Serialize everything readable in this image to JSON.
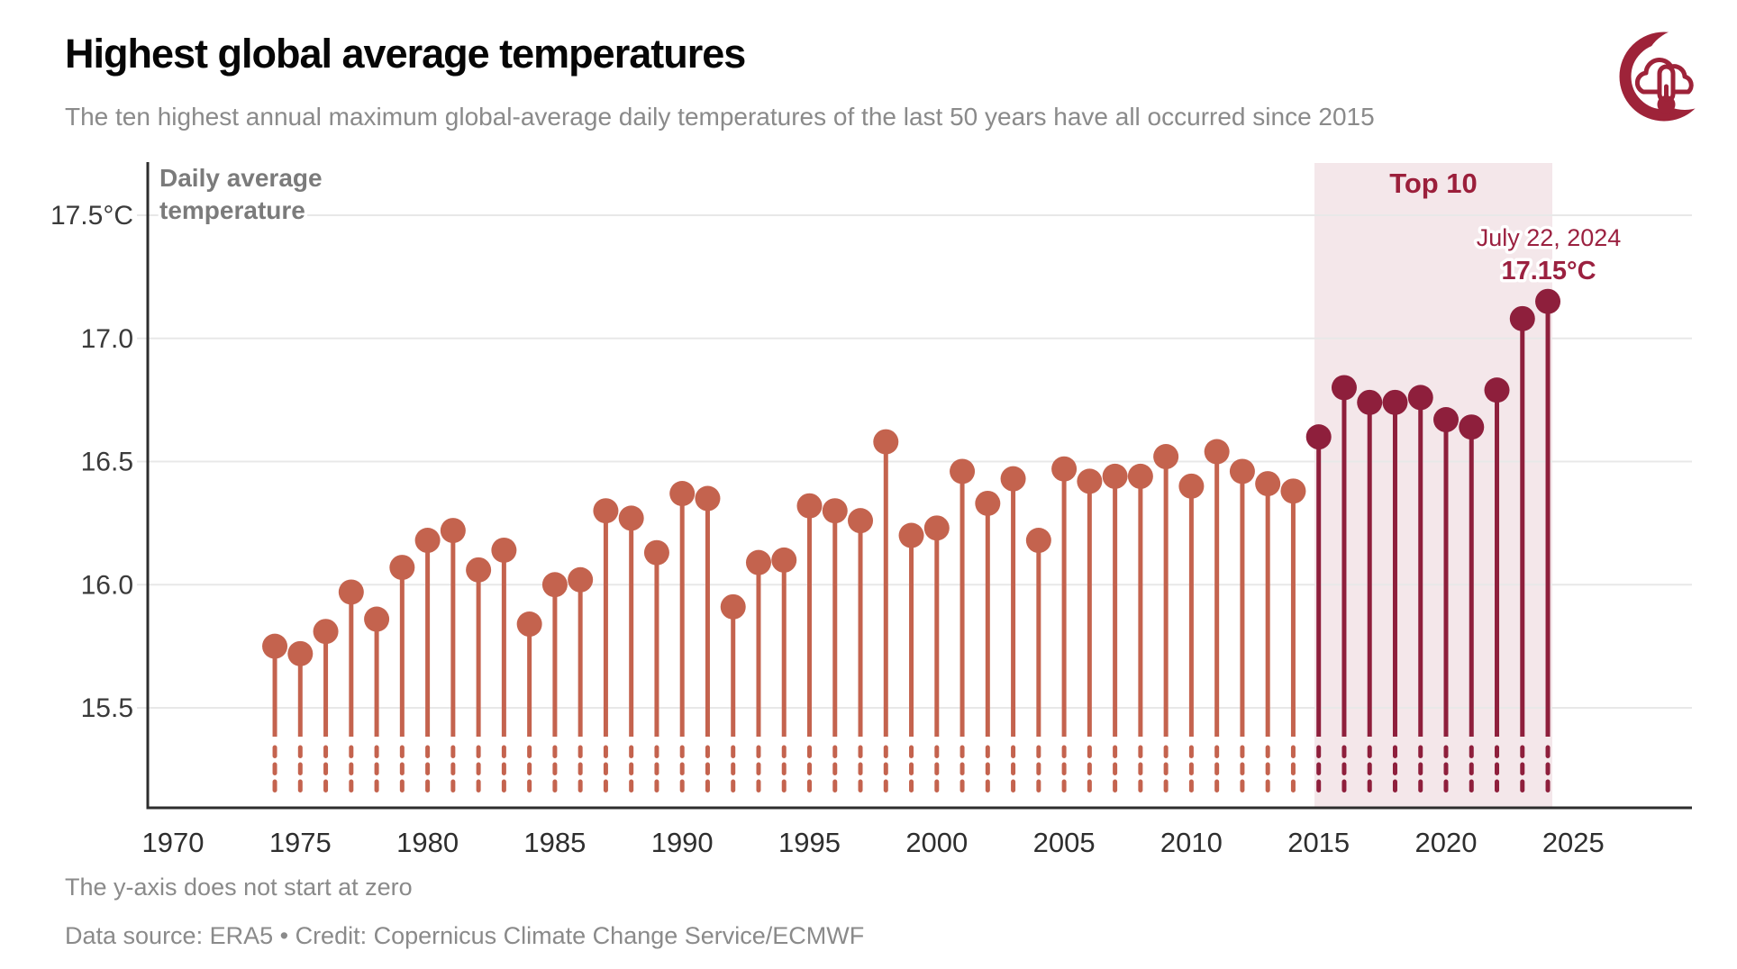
{
  "page": {
    "title": "Highest global average temperatures",
    "subtitle": "The ten highest annual maximum global-average daily temperatures of the last 50 years have all occurred since 2015",
    "footnote": "The y-axis does not start at zero",
    "credit": "Data source: ERA5 • Credit: Copernicus Climate Change Service/ECMWF",
    "logo": "cloud-thermometer-crescent-logo"
  },
  "chart_data": {
    "type": "lollipop",
    "title": "Highest global average temperatures",
    "subtitle": "The ten highest annual maximum global-average daily temperatures of the last 50 years have all occurred since 2015",
    "ylabel": "Daily average temperature",
    "ylabel_lines": [
      "Daily average",
      "temperature"
    ],
    "unit": "°C",
    "grid": "horizontal-only",
    "ylim": [
      15.25,
      17.65
    ],
    "xlim": [
      1969,
      2027
    ],
    "y_ticks": [
      {
        "label": "17.5°C",
        "value": 17.5
      },
      {
        "label": "17.0",
        "value": 17.0
      },
      {
        "label": "16.5",
        "value": 16.5
      },
      {
        "label": "16.0",
        "value": 16.0
      },
      {
        "label": "15.5",
        "value": 15.5
      }
    ],
    "x_ticks": [
      1970,
      1975,
      1980,
      1985,
      1990,
      1995,
      2000,
      2005,
      2010,
      2015,
      2020,
      2025
    ],
    "x": [
      1974,
      1975,
      1976,
      1977,
      1978,
      1979,
      1980,
      1981,
      1982,
      1983,
      1984,
      1985,
      1986,
      1987,
      1988,
      1989,
      1990,
      1991,
      1992,
      1993,
      1994,
      1995,
      1996,
      1997,
      1998,
      1999,
      2000,
      2001,
      2002,
      2003,
      2004,
      2005,
      2006,
      2007,
      2008,
      2009,
      2010,
      2011,
      2012,
      2013,
      2014,
      2015,
      2016,
      2017,
      2018,
      2019,
      2020,
      2021,
      2022,
      2023,
      2024
    ],
    "values": [
      15.75,
      15.72,
      15.81,
      15.97,
      15.86,
      16.07,
      16.18,
      16.22,
      16.06,
      16.14,
      15.84,
      16.0,
      16.02,
      16.3,
      16.27,
      16.13,
      16.37,
      16.35,
      15.91,
      16.09,
      16.1,
      16.32,
      16.3,
      16.26,
      16.58,
      16.2,
      16.23,
      16.46,
      16.33,
      16.43,
      16.18,
      16.47,
      16.42,
      16.44,
      16.44,
      16.52,
      16.4,
      16.54,
      16.46,
      16.41,
      16.38,
      16.6,
      16.8,
      16.74,
      16.74,
      16.76,
      16.67,
      16.64,
      16.79,
      17.08,
      17.15
    ],
    "top10": {
      "label": "Top 10",
      "start_year": 2015,
      "end_year": 2024
    },
    "annotation": {
      "line1": "July 22, 2024",
      "line2": "17.15°C",
      "year": 2024,
      "value": 17.15
    },
    "colors": {
      "point": "#c4634e",
      "point_top10": "#8e1f3c",
      "band": "#f4e7ea",
      "accent_text": "#9b2140",
      "grid": "#e8e8e8",
      "axis": "#2d2d2d",
      "logo": "#9e2339"
    }
  }
}
